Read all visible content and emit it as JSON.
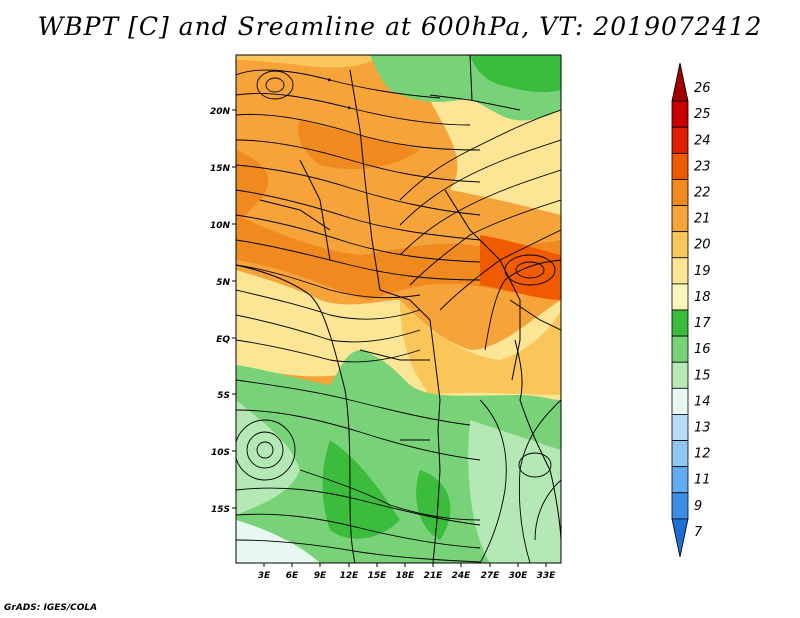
{
  "title": "WBPT [C] and Sreamline at 600hPa, VT: 2019072412",
  "credit": "GrADS: IGES/COLA",
  "map": {
    "lat_labels": [
      "20N",
      "15N",
      "10N",
      "5N",
      "EQ",
      "5S",
      "10S",
      "15S"
    ],
    "lon_labels": [
      "3E",
      "6E",
      "9E",
      "12E",
      "15E",
      "18E",
      "21E",
      "24E",
      "27E",
      "30E",
      "33E"
    ]
  },
  "colorbar": {
    "levels": [
      "26",
      "25",
      "24",
      "23",
      "22",
      "21",
      "20",
      "19",
      "18",
      "17",
      "16",
      "15",
      "14",
      "13",
      "12",
      "11",
      "9",
      "7"
    ],
    "colors": [
      "#a00000",
      "#c80000",
      "#e02000",
      "#f05a00",
      "#f08a1e",
      "#f6a43a",
      "#fac65a",
      "#fce696",
      "#fcf5c0",
      "#3cbc3c",
      "#78d278",
      "#b4e8b4",
      "#e6f8f0",
      "#b4dcf6",
      "#90c6f2",
      "#64aaee",
      "#3c8ce6",
      "#1e6ed6"
    ]
  }
}
